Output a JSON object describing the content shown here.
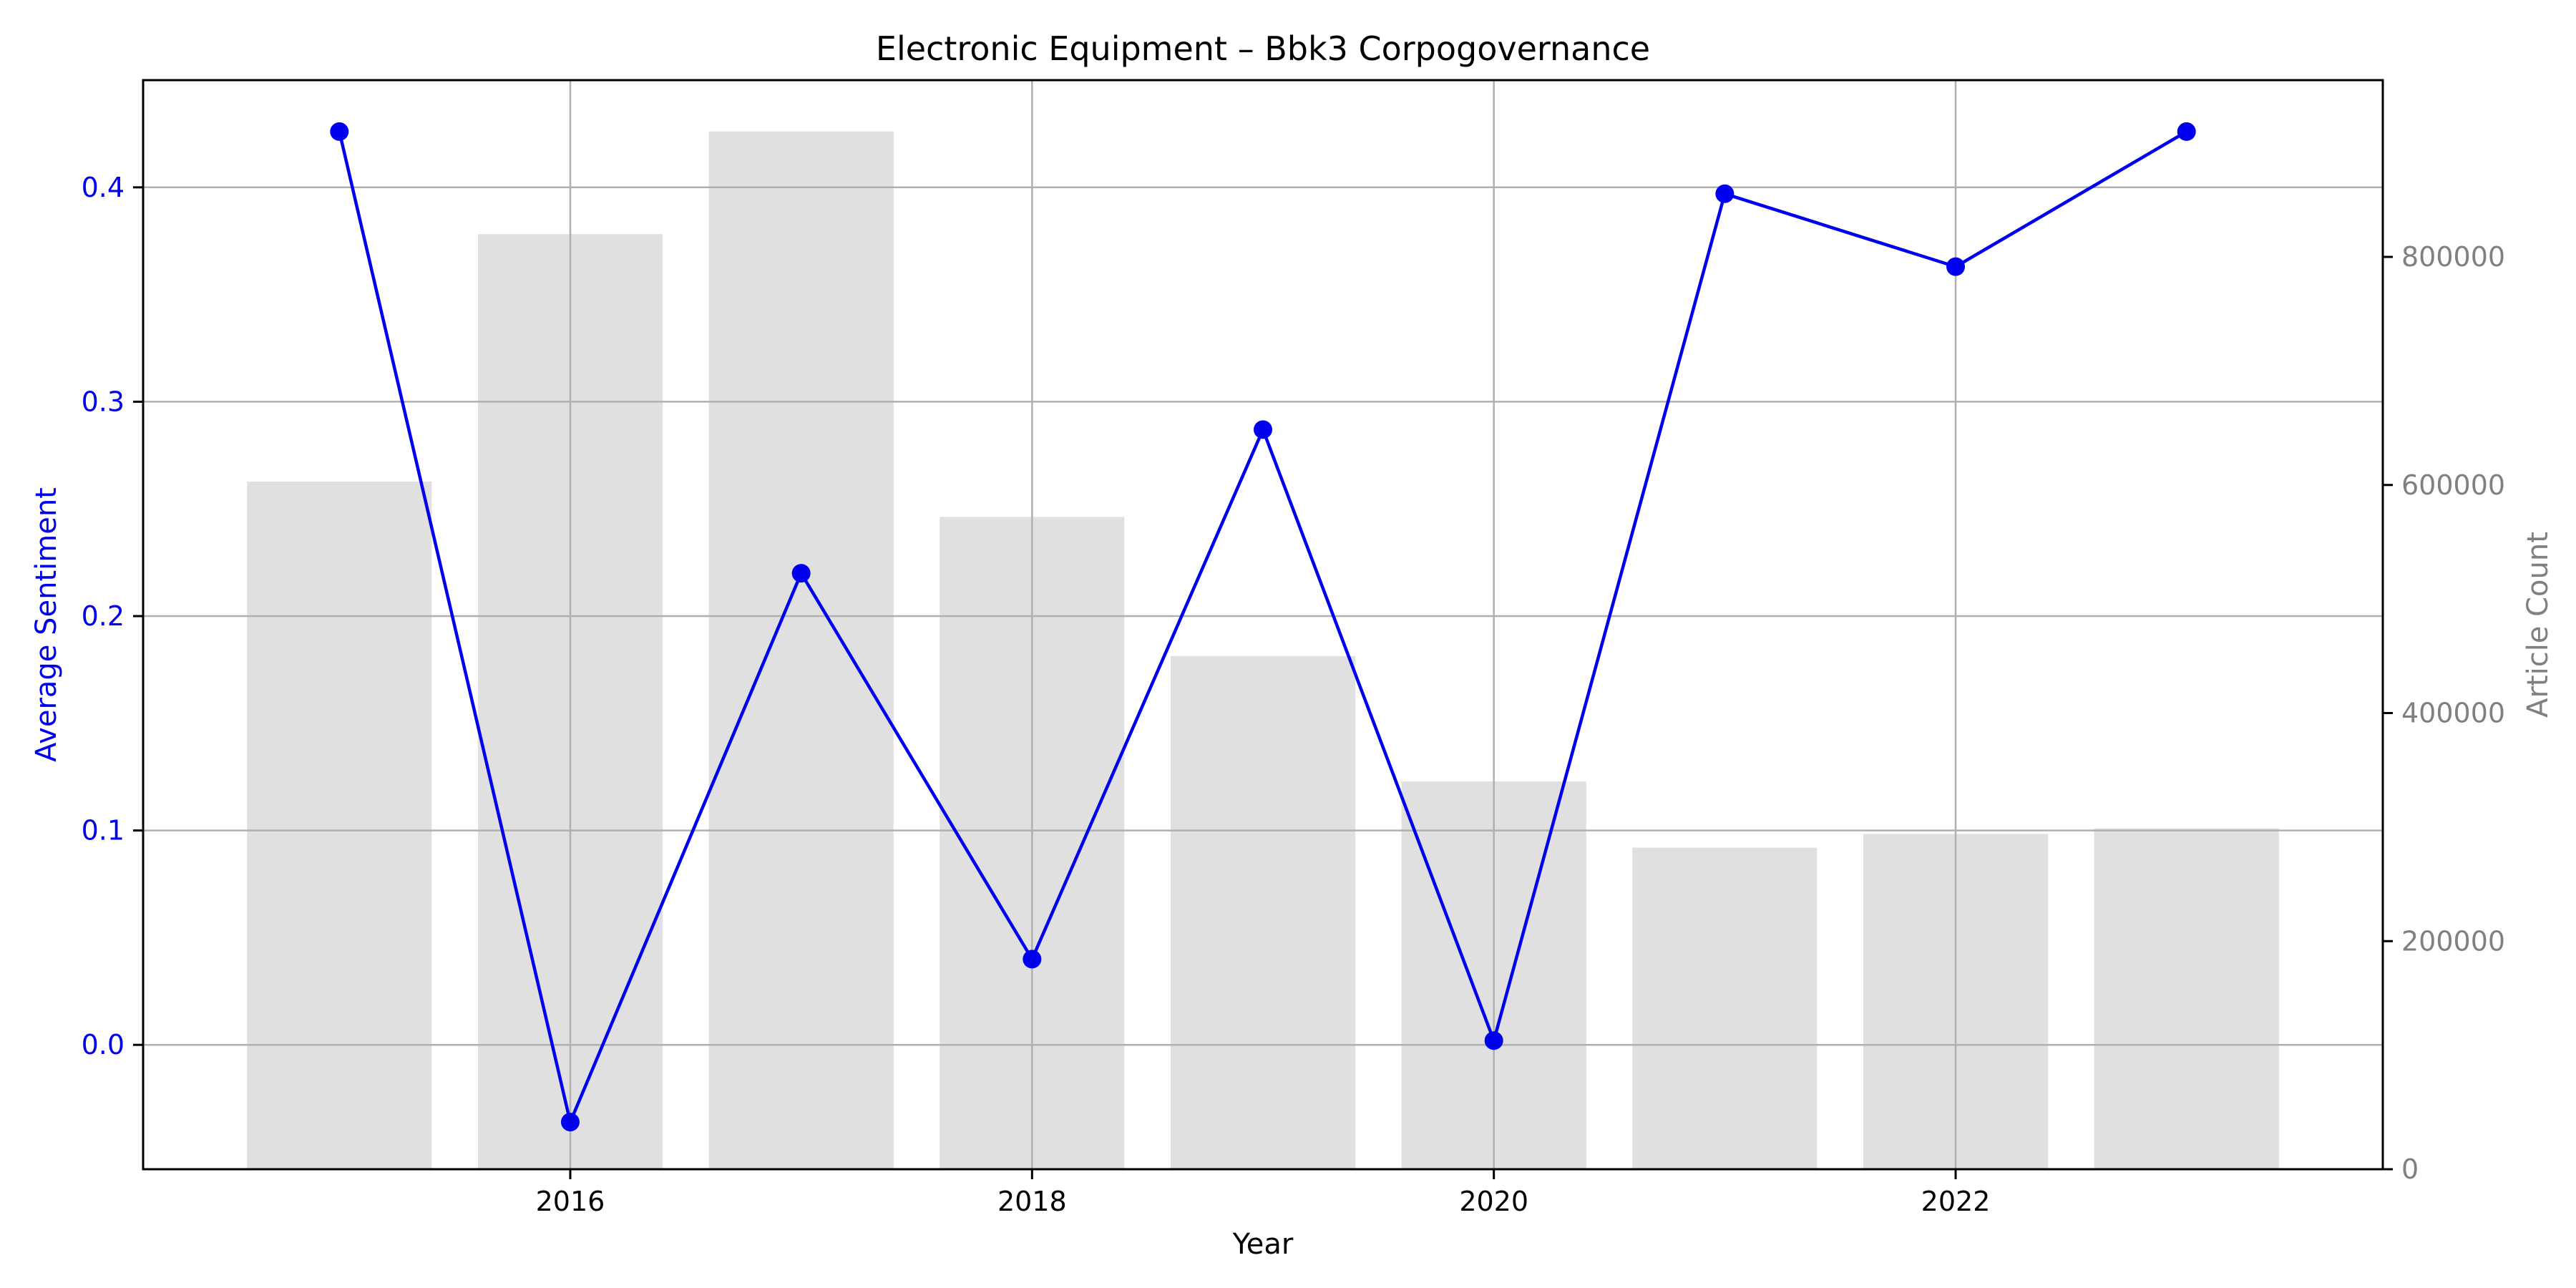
{
  "chart_data": {
    "type": "bar+line",
    "title": "Electronic Equipment – Bbk3 Corpogovernance",
    "xlabel": "Year",
    "ylabel_left": "Average Sentiment",
    "ylabel_right": "Article Count",
    "x": [
      2015,
      2016,
      2017,
      2018,
      2019,
      2020,
      2021,
      2022,
      2023
    ],
    "x_ticks": [
      2016,
      2018,
      2020,
      2022
    ],
    "x_tick_labels": [
      "2016",
      "2018",
      "2020",
      "2022"
    ],
    "xlim": [
      2014.15,
      2023.85
    ],
    "series": [
      {
        "axis": "left",
        "type": "line",
        "values": [
          0.426,
          -0.036,
          0.22,
          0.04,
          0.287,
          0.002,
          0.397,
          0.363,
          0.426
        ]
      },
      {
        "axis": "right",
        "type": "bar",
        "values": [
          603000,
          820000,
          910000,
          572000,
          450000,
          340000,
          282000,
          294000,
          299000
        ]
      }
    ],
    "ylim_left": [
      -0.058,
      0.45
    ],
    "yticks_left": [
      0.0,
      0.1,
      0.2,
      0.3,
      0.4
    ],
    "ytick_labels_left": [
      "0.0",
      "0.1",
      "0.2",
      "0.3",
      "0.4"
    ],
    "ylim_right": [
      0,
      955000
    ],
    "yticks_right": [
      0,
      200000,
      400000,
      600000,
      800000
    ],
    "ytick_labels_right": [
      "0",
      "200000",
      "400000",
      "600000",
      "800000"
    ],
    "grid": true,
    "colors": {
      "line": "#0000ee",
      "bar": "#e0e0e0",
      "grid": "#b0b0b0",
      "left_axis_text": "#0000ee",
      "right_axis_text": "#808080"
    }
  }
}
